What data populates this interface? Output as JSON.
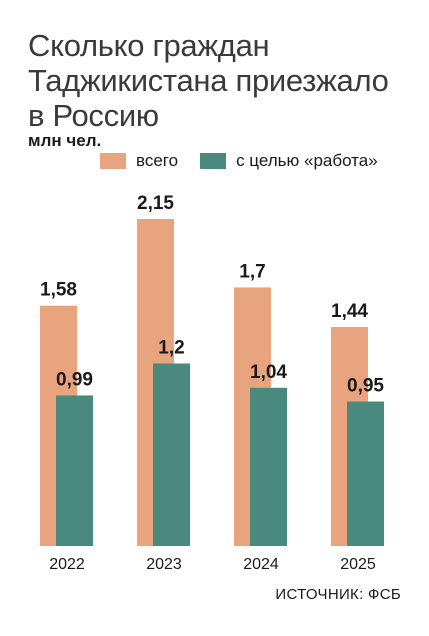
{
  "title_lines": [
    "Сколько граждан",
    "Таджикистана приезжало",
    "в Россию"
  ],
  "unit": "млн чел.",
  "source": "ИСТОЧНИК: ФСБ",
  "colors": {
    "total": "#e8a47f",
    "work": "#4a8a7e"
  },
  "chart_data": {
    "type": "bar",
    "categories": [
      "2022",
      "2023",
      "2024",
      "2025"
    ],
    "series": [
      {
        "name": "всего",
        "values": [
          1.58,
          2.15,
          1.7,
          1.44
        ],
        "labels": [
          "1,58",
          "2,15",
          "1,7",
          "1,44"
        ]
      },
      {
        "name": "с целью «работа»",
        "values": [
          0.99,
          1.2,
          1.04,
          0.95
        ],
        "labels": [
          "0,99",
          "1,2",
          "1,04",
          "0,95"
        ]
      }
    ],
    "ylim": [
      0,
      2.15
    ],
    "grid": false,
    "legend": "top"
  }
}
